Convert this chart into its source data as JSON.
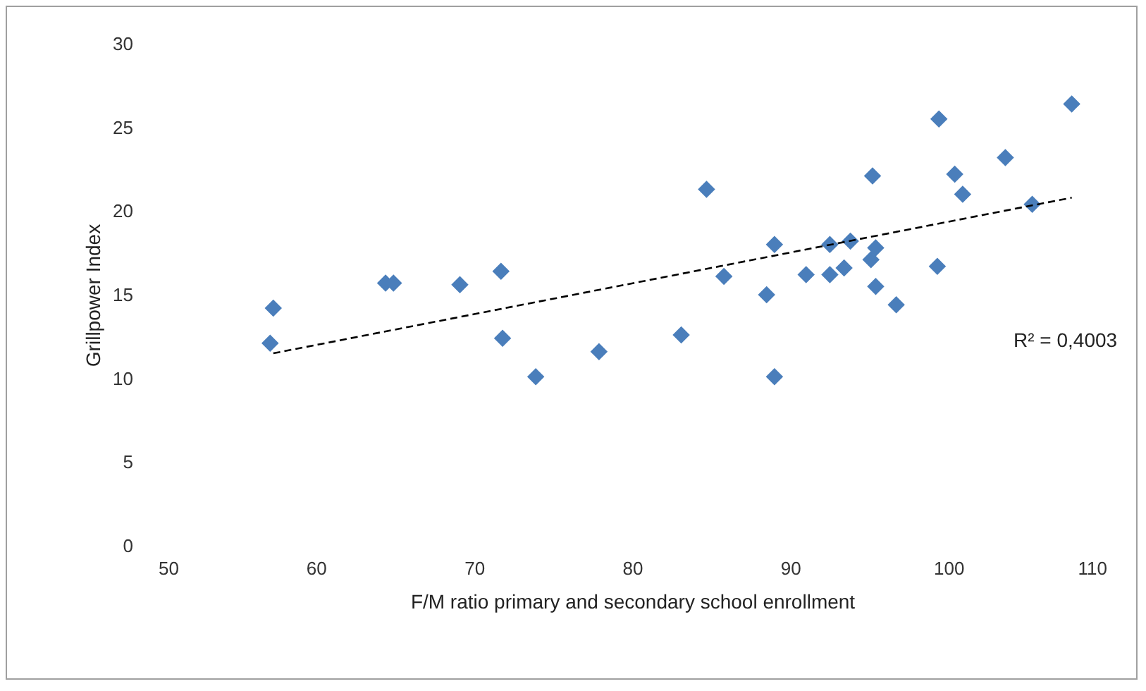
{
  "chart_data": {
    "type": "scatter",
    "xlabel": "F/M ratio primary and secondary school enrollment",
    "ylabel": "Grillpower Index",
    "xlim": [
      50,
      110
    ],
    "xticks": [
      50,
      60,
      70,
      80,
      90,
      100,
      110
    ],
    "ylim": [
      0,
      30
    ],
    "yticks": [
      0,
      5,
      10,
      15,
      20,
      25,
      30
    ],
    "grid": false,
    "legend": false,
    "marker": "diamond",
    "annotations": [
      "R² = 0,4003"
    ],
    "series": [
      {
        "color": "#4a7ebb",
        "x": [
          57.3,
          57.1,
          64.4,
          64.9,
          69.1,
          71.7,
          71.8,
          73.9,
          77.9,
          84.7,
          83.1,
          85.8,
          89.0,
          88.5,
          89.0,
          91.0,
          92.5,
          92.5,
          93.4,
          93.8,
          95.4,
          95.1,
          95.4,
          96.7,
          95.2,
          99.3,
          99.4,
          100.4,
          100.9,
          103.6,
          105.3,
          107.8
        ],
        "values": [
          14.2,
          12.1,
          15.7,
          15.7,
          15.6,
          16.4,
          12.4,
          10.1,
          11.6,
          21.3,
          12.6,
          16.1,
          18.0,
          15.0,
          10.1,
          16.2,
          18.0,
          16.2,
          16.6,
          18.2,
          17.8,
          17.1,
          15.5,
          14.4,
          22.1,
          16.7,
          25.5,
          22.2,
          21.0,
          23.2,
          20.4,
          26.4
        ]
      },
      {
        "type": "line",
        "color": "#000000",
        "line_style": "dashed",
        "marker": "none",
        "x": [
          57.3,
          107.8
        ],
        "values": [
          11.5,
          20.8
        ]
      }
    ]
  }
}
